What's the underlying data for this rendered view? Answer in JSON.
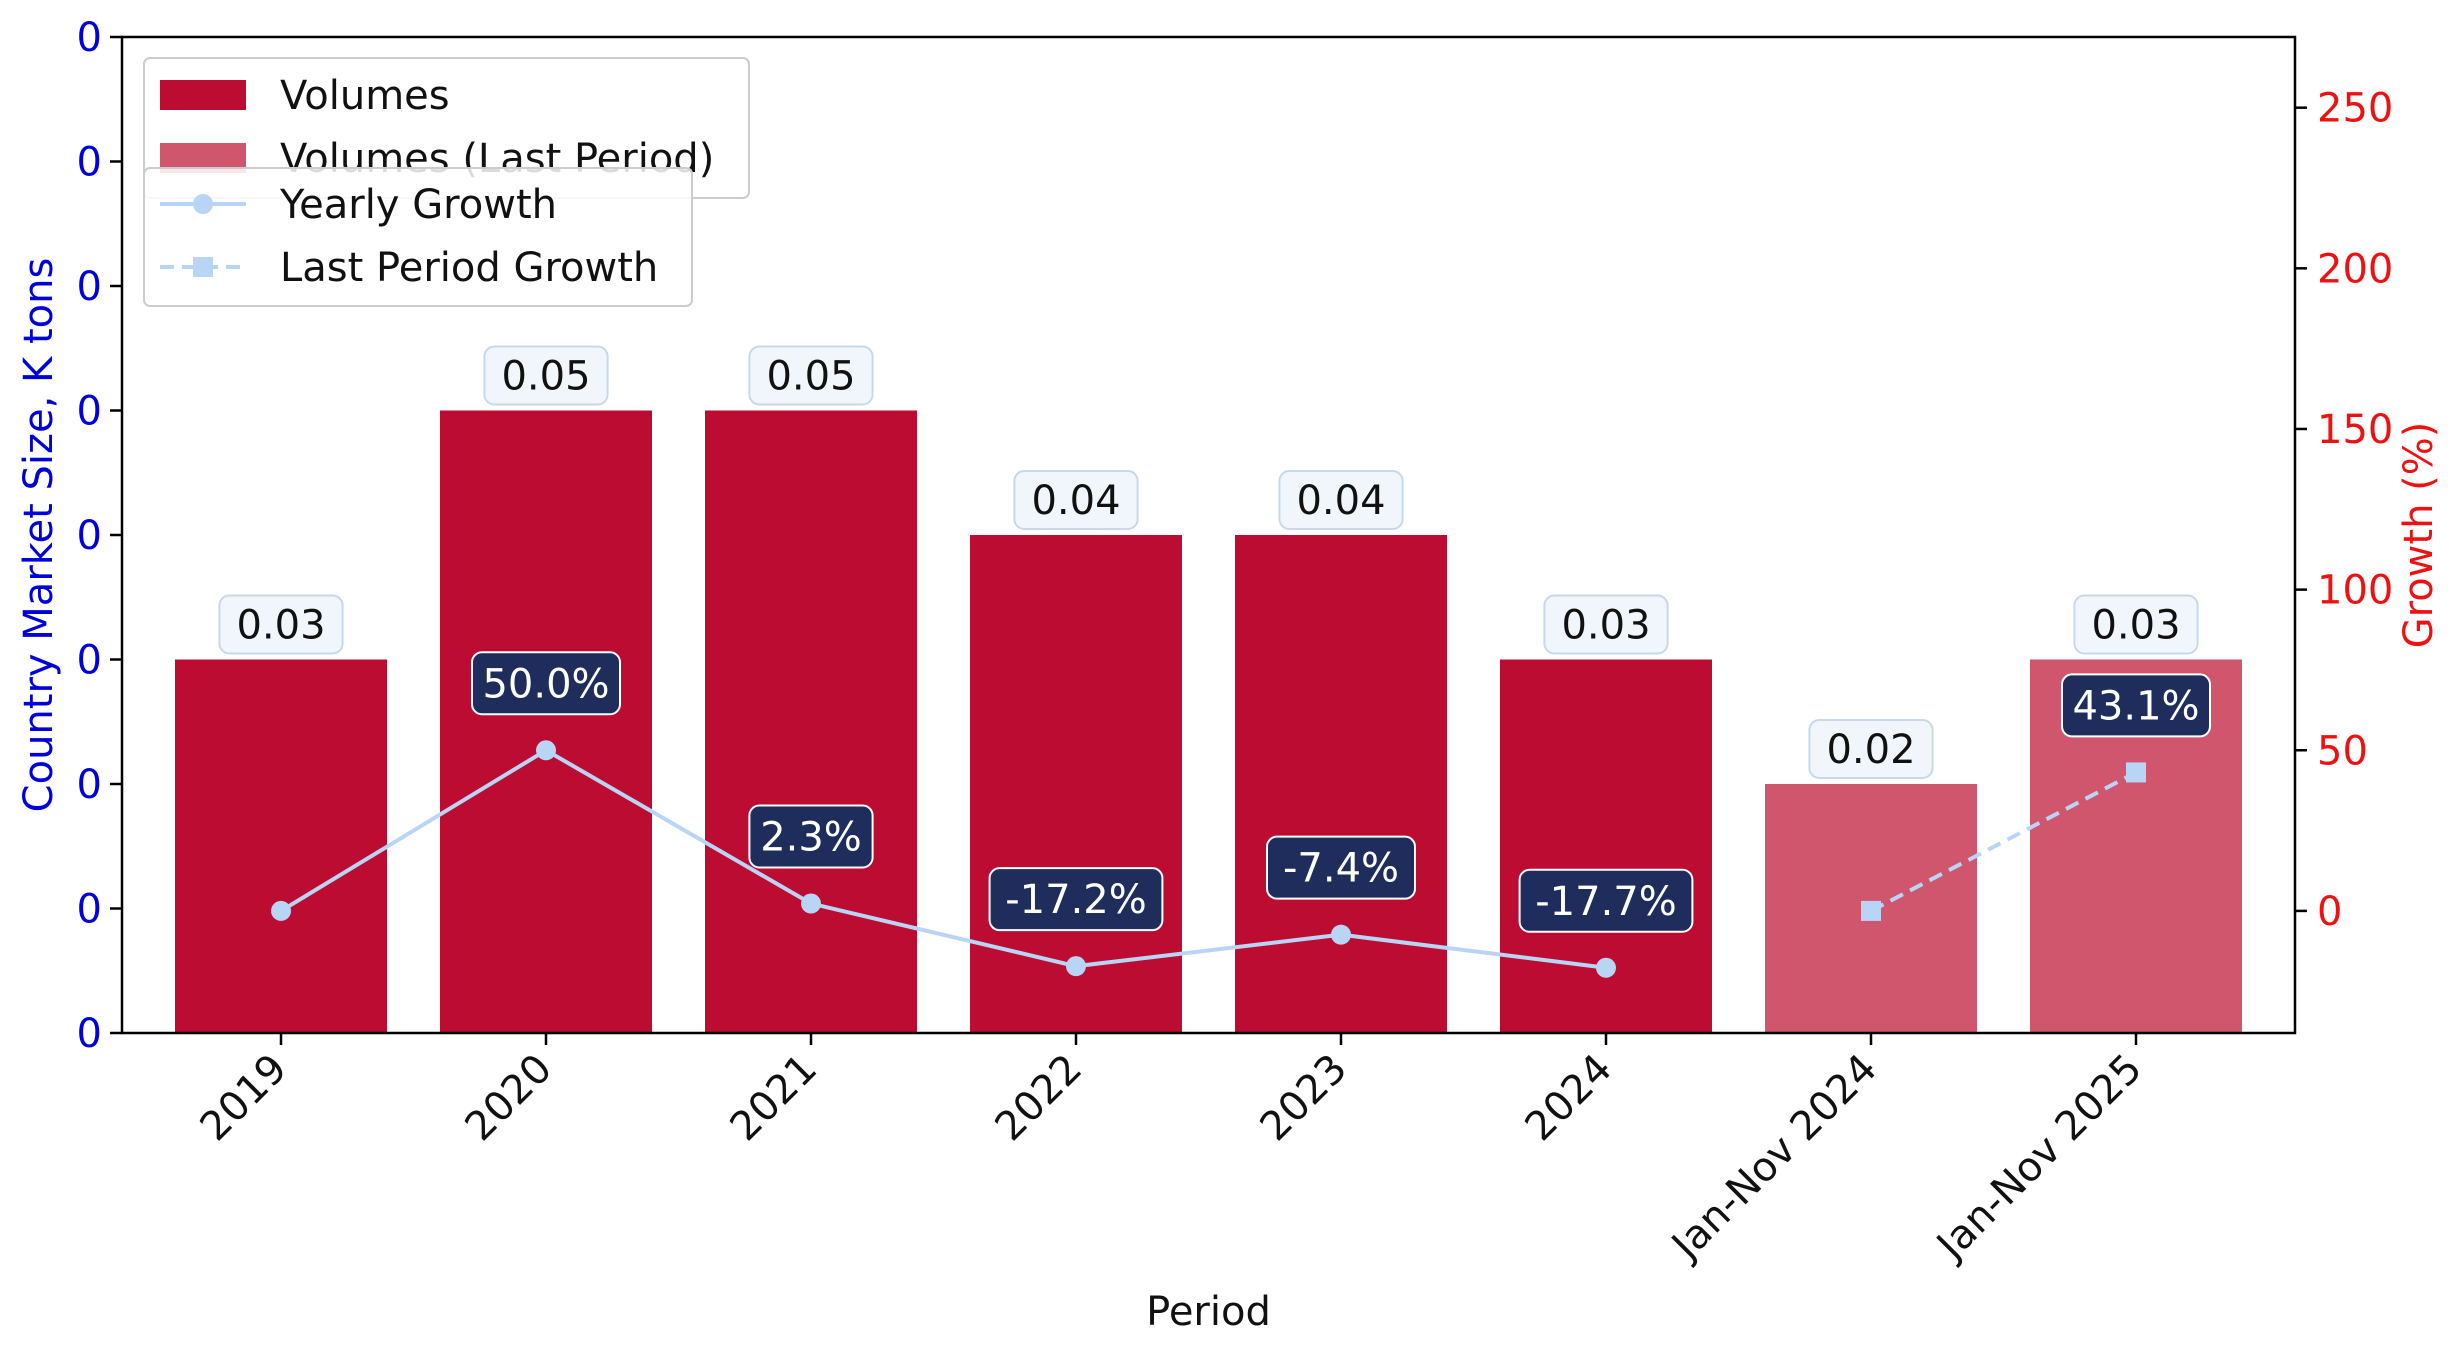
{
  "chart_data": {
    "type": "bar",
    "categories": [
      "2019",
      "2020",
      "2021",
      "2022",
      "2023",
      "2024",
      "Jan-Nov 2024",
      "Jan-Nov 2025"
    ],
    "xlabel": "Period",
    "ylabel_left": "Country Market Size, K tons",
    "ylabel_right": "Growth (%)",
    "left_axis": {
      "ylim": [
        0,
        0.08
      ],
      "ticks": [
        0,
        0.01,
        0.02,
        0.03,
        0.04,
        0.05,
        0.06,
        0.07,
        0.08
      ],
      "tick_labels": [
        "0",
        "0",
        "0",
        "0",
        "0",
        "0",
        "0",
        "0",
        "0"
      ],
      "color": "#0000dd"
    },
    "right_axis": {
      "ylim": [
        -38,
        272
      ],
      "ticks": [
        0,
        50,
        100,
        150,
        200,
        250
      ],
      "tick_labels": [
        "0",
        "50",
        "100",
        "150",
        "200",
        "250"
      ],
      "color": "#ee1111"
    },
    "series": [
      {
        "name": "Volumes",
        "kind": "bar",
        "color": "#bc0c32",
        "values": [
          0.03,
          0.05,
          0.05,
          0.04,
          0.04,
          0.03,
          null,
          null
        ],
        "labels": [
          "0.03",
          "0.05",
          "0.05",
          "0.04",
          "0.04",
          "0.03",
          null,
          null
        ]
      },
      {
        "name": "Volumes (Last Period)",
        "kind": "bar",
        "color": "#d0566e",
        "values": [
          null,
          null,
          null,
          null,
          null,
          null,
          0.02,
          0.03
        ],
        "labels": [
          null,
          null,
          null,
          null,
          null,
          null,
          "0.02",
          "0.03"
        ]
      },
      {
        "name": "Yearly Growth",
        "kind": "line",
        "axis": "right",
        "color": "#b9d5f5",
        "marker": "circle",
        "dash": "solid",
        "values": [
          0,
          50.0,
          2.3,
          -17.2,
          -7.4,
          -17.7,
          null,
          null
        ],
        "labels": [
          null,
          "50.0%",
          "2.3%",
          "-17.2%",
          "-7.4%",
          "-17.7%",
          null,
          null
        ]
      },
      {
        "name": "Last Period Growth",
        "kind": "line",
        "axis": "right",
        "color": "#b9d5f5",
        "marker": "square",
        "dash": "dashed",
        "values": [
          null,
          null,
          null,
          null,
          null,
          null,
          0,
          43.1
        ],
        "labels": [
          null,
          null,
          null,
          null,
          null,
          null,
          null,
          "43.1%"
        ]
      }
    ],
    "legend_placement": "top-left",
    "grid": false
  }
}
